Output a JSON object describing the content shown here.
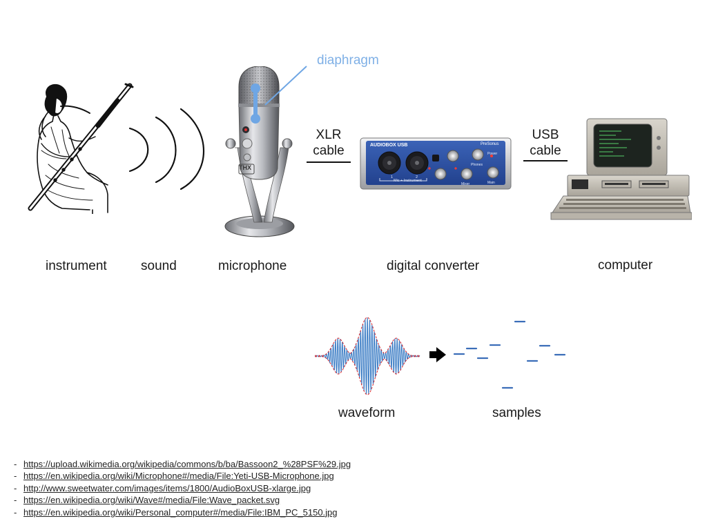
{
  "labels": {
    "instrument": "instrument",
    "sound": "sound",
    "microphone": "microphone",
    "digital_converter": "digital converter",
    "computer": "computer",
    "diaphragm": "diaphragm",
    "xlr_line1": "XLR",
    "xlr_line2": "cable",
    "usb_line1": "USB",
    "usb_line2": "cable",
    "waveform": "waveform",
    "samples": "samples"
  },
  "converter": {
    "brand": "AUDIOBOX USB",
    "maker": "PreSonus",
    "inputs_caption": "Mic + Instrument",
    "ch1": "1",
    "ch2": "2",
    "mixer": "Mixer",
    "main": "Main",
    "phones": "Phones",
    "power": "Power"
  },
  "mic_badge": "THX",
  "references": [
    "https://upload.wikimedia.org/wikipedia/commons/b/ba/Bassoon2_%28PSF%29.jpg",
    "https://en.wikipedia.org/wiki/Microphone#/media/File:Yeti-USB-Microphone.jpg",
    "http://www.sweetwater.com/images/items/1800/AudioBoxUSB-xlarge.jpg",
    "https://en.wikipedia.org/wiki/Wave#/media/File:Wave_packet.svg",
    "https://en.wikipedia.org/wiki/Personal_computer#/media/File:IBM_PC_5150.jpg"
  ],
  "colors": {
    "diaphragm": "#6fa6e4",
    "waveform": "#3f7fc6",
    "envelope": "#d9262b",
    "converter": "#2c4fa0",
    "samples": "#3a6db8"
  }
}
